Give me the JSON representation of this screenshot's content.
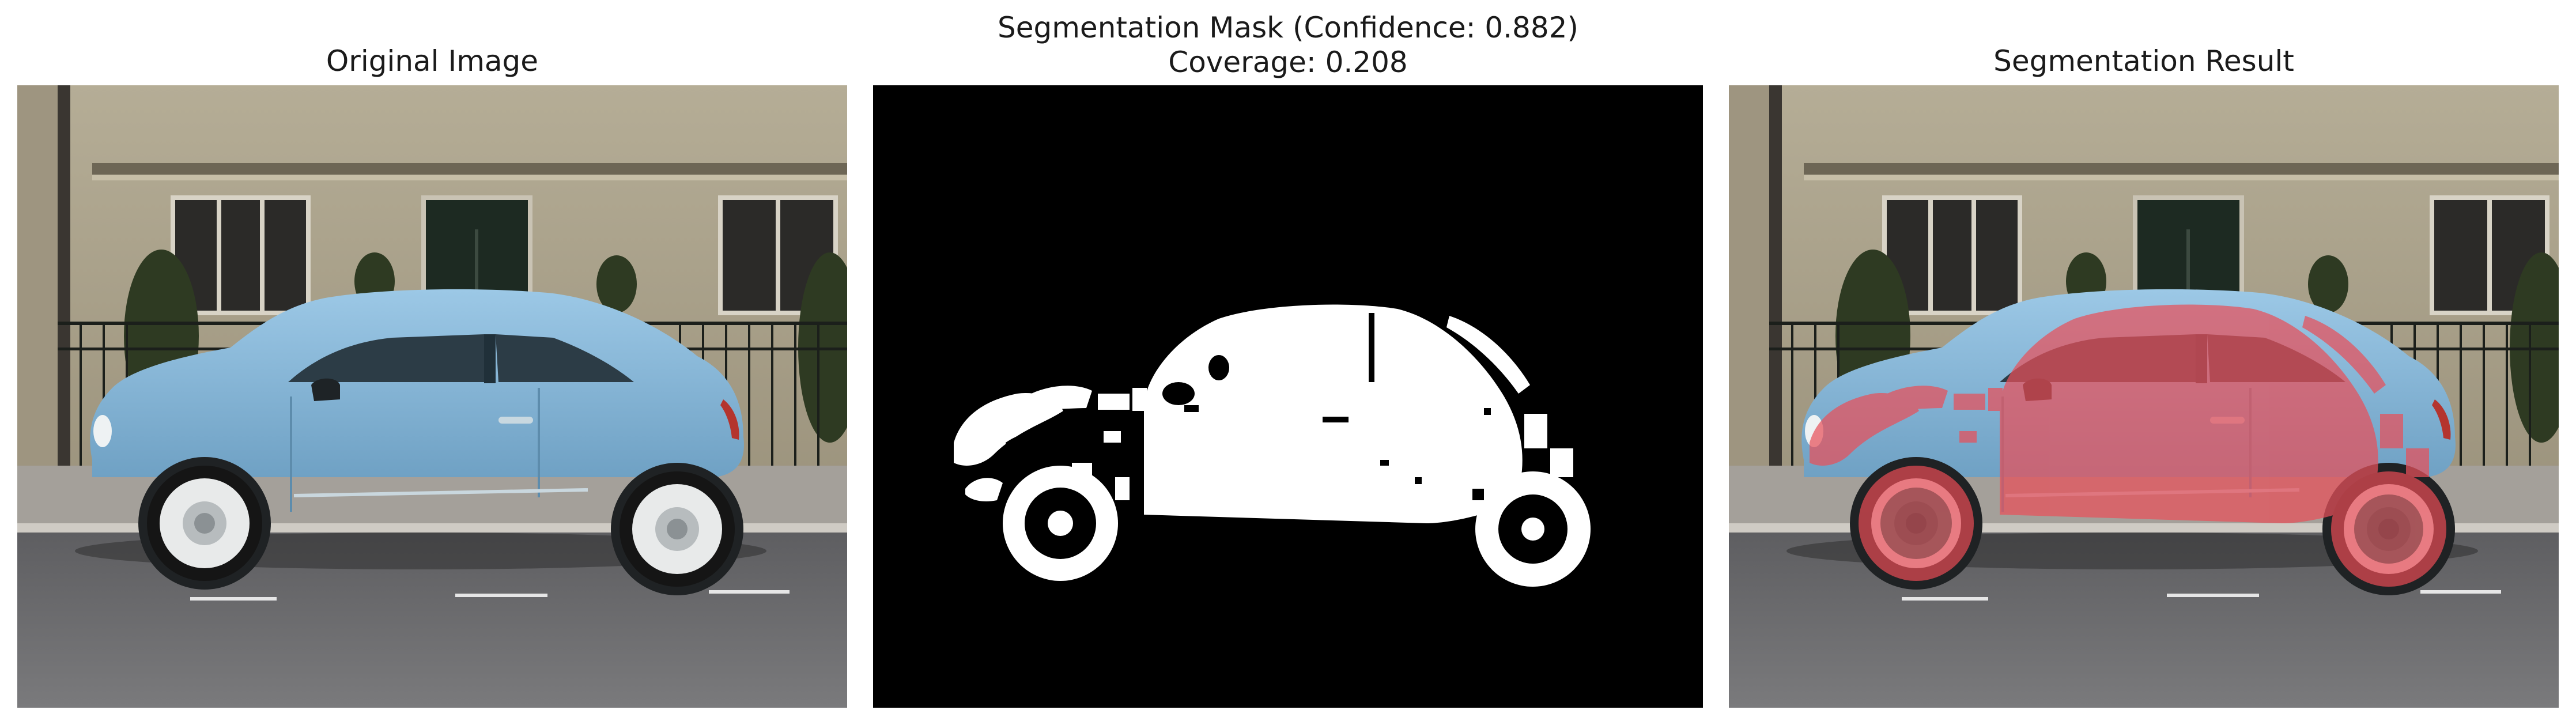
{
  "panels": {
    "original": {
      "title": "Original Image"
    },
    "mask": {
      "title_line1": "Segmentation Mask (Confidence: 0.882)",
      "title_line2": "Coverage: 0.208"
    },
    "result": {
      "title": "Segmentation Result"
    }
  },
  "colors": {
    "car_body": "#86b6d6",
    "overlay": "#e8505a",
    "mask_fg": "#ffffff",
    "mask_bg": "#000000",
    "wall": "#a9a089",
    "road": "#6e6e70"
  },
  "metrics": {
    "confidence": 0.882,
    "coverage": 0.208
  }
}
